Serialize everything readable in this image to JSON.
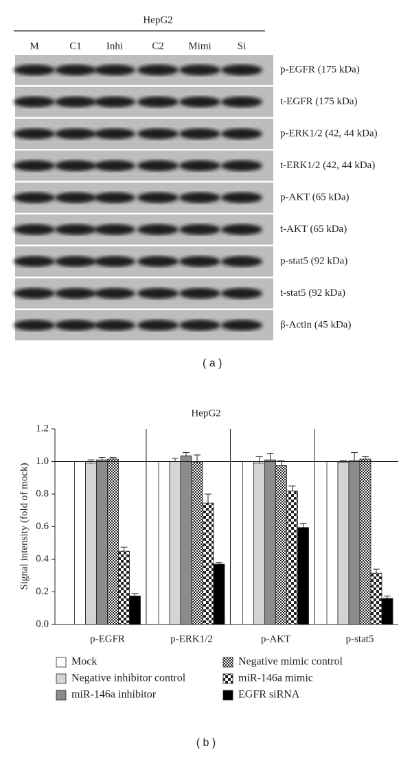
{
  "blot": {
    "title": "HepG2",
    "lanes": [
      "M",
      "C1",
      "Inhi",
      "C2",
      "Mimi",
      "Si"
    ],
    "bands": [
      "p-EGFR (175 kDa)",
      "t-EGFR (175 kDa)",
      "p-ERK1/2 (42, 44 kDa)",
      "t-ERK1/2 (42, 44 kDa)",
      "p-AKT (65 kDa)",
      "t-AKT (65 kDa)",
      "p-stat5 (92 kDa)",
      "t-stat5 (92 kDa)",
      "β-Actin (45 kDa)"
    ],
    "panel": "( a )"
  },
  "chart_data": {
    "type": "bar",
    "title": "HepG2",
    "panel": "( b )",
    "y_label": "Signal intensity (fold of mock)",
    "categories": [
      "p-EGFR",
      "p-ERK1/2",
      "p-AKT",
      "p-stat5"
    ],
    "series": [
      {
        "name": "Mock",
        "color": "#ffffff",
        "values": [
          1.0,
          1.0,
          1.0,
          1.0
        ]
      },
      {
        "name": "Negative inhibitor control",
        "color": "#d4d4d4",
        "values": [
          0.99,
          1.0,
          0.99,
          0.995
        ],
        "errors": [
          0.02,
          0.02,
          0.04,
          0.01
        ]
      },
      {
        "name": "miR-146a inhibitor",
        "color": "#8c8c8c",
        "values": [
          1.01,
          1.035,
          1.01,
          1.005
        ],
        "errors": [
          0.015,
          0.02,
          0.04,
          0.05
        ]
      },
      {
        "name": "Negative mimic control",
        "color": "#333333",
        "pattern": "fine-checker",
        "values": [
          1.015,
          0.995,
          0.975,
          1.015
        ],
        "errors": [
          0.01,
          0.045,
          0.03,
          0.015
        ]
      },
      {
        "name": "miR-146a mimic",
        "color": "#333333",
        "pattern": "checker",
        "values": [
          0.45,
          0.745,
          0.82,
          0.315
        ],
        "errors": [
          0.025,
          0.055,
          0.03,
          0.025
        ]
      },
      {
        "name": "EGFR siRNA",
        "color": "#000000",
        "values": [
          0.175,
          0.37,
          0.595,
          0.16
        ],
        "errors": [
          0.015,
          0.01,
          0.025,
          0.015
        ]
      }
    ],
    "reference_line": 1,
    "ylim": [
      0,
      1.2
    ],
    "yticks": [
      {
        "value": 0,
        "label": "0.0"
      },
      0.2,
      0.4,
      0.6,
      0.8,
      {
        "value": 1,
        "label": "1.0"
      },
      1.2
    ]
  }
}
